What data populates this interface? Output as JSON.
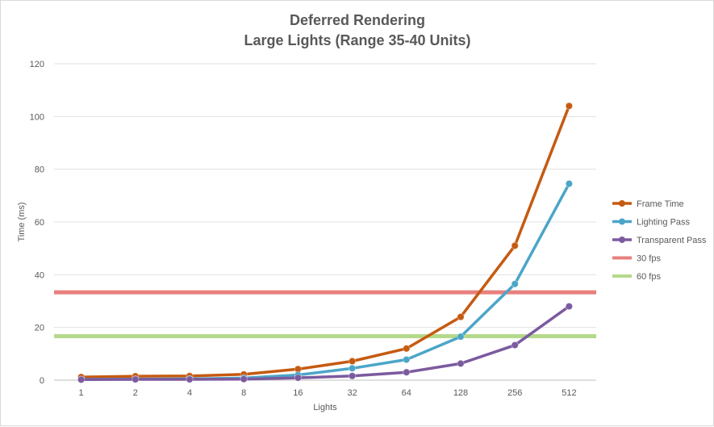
{
  "chart_data": {
    "type": "line",
    "title": [
      "Deferred Rendering",
      "Large Lights (Range 35-40 Units)"
    ],
    "xlabel": "Lights",
    "ylabel": "Time (ms)",
    "categories": [
      "1",
      "2",
      "4",
      "8",
      "16",
      "32",
      "64",
      "128",
      "256",
      "512"
    ],
    "ylim": [
      0,
      120
    ],
    "yticks": [
      0,
      20,
      40,
      60,
      80,
      100,
      120
    ],
    "grid": true,
    "legend_position": "right",
    "series": [
      {
        "name": "Frame Time",
        "color": "#c55a11",
        "values": [
          1.2,
          1.5,
          1.6,
          2.2,
          4.2,
          7.2,
          12.0,
          24.0,
          51.0,
          104.0
        ]
      },
      {
        "name": "Lighting Pass",
        "color": "#4ba5c8",
        "values": [
          0.3,
          0.4,
          0.5,
          0.8,
          2.0,
          4.5,
          7.8,
          16.5,
          36.5,
          74.5
        ]
      },
      {
        "name": "Transparent Pass",
        "color": "#7b5a9e",
        "values": [
          0.2,
          0.3,
          0.3,
          0.4,
          0.9,
          1.6,
          3.0,
          6.3,
          13.3,
          28.0
        ]
      }
    ],
    "reference_lines": [
      {
        "name": "30 fps",
        "color": "#e8807e",
        "value": 33.33
      },
      {
        "name": "60 fps",
        "color": "#b5d98a",
        "value": 16.67
      }
    ]
  }
}
